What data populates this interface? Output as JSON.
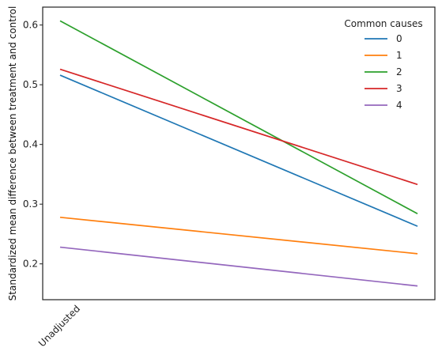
{
  "chart_data": {
    "type": "line",
    "x": [
      "Unadjusted",
      ""
    ],
    "ylabel": "Standardized mean difference between treatment and control",
    "xlabel": "",
    "ylim": [
      0.14,
      0.63
    ],
    "yticks": [
      0.2,
      0.3,
      0.4,
      0.5,
      0.6
    ],
    "grid": false,
    "legend": {
      "title": "Common causes",
      "placement": "top-right"
    },
    "series": [
      {
        "name": "0",
        "color": "#1f77b4",
        "values": [
          0.516,
          0.263
        ]
      },
      {
        "name": "1",
        "color": "#ff7f0e",
        "values": [
          0.278,
          0.217
        ]
      },
      {
        "name": "2",
        "color": "#2ca02c",
        "values": [
          0.607,
          0.284
        ]
      },
      {
        "name": "3",
        "color": "#d62728",
        "values": [
          0.526,
          0.333
        ]
      },
      {
        "name": "4",
        "color": "#9467bd",
        "values": [
          0.228,
          0.163
        ]
      }
    ]
  }
}
